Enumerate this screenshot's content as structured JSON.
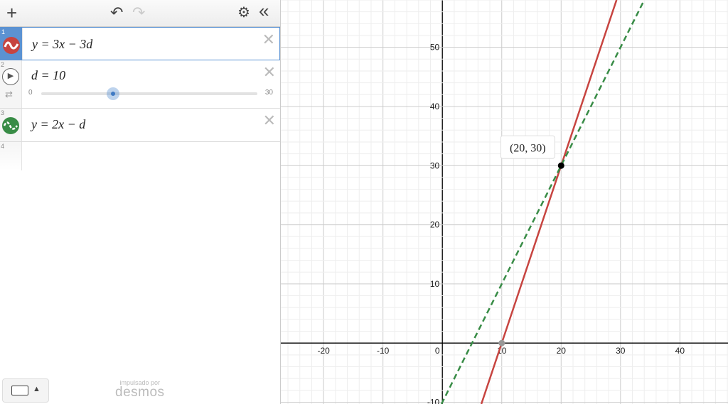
{
  "toolbar": {
    "add": "+",
    "undo": "↶",
    "redo": "↷",
    "settings": "⚙",
    "collapse": "«"
  },
  "expressions": [
    {
      "index": "1",
      "latex": "y = 3x − 3d",
      "color": "#c74440",
      "style": "solid",
      "selected": true
    },
    {
      "index": "2",
      "latex": "d = 10",
      "slider": {
        "min": "0",
        "max": "30",
        "value": 10
      }
    },
    {
      "index": "3",
      "latex": "y = 2x − d",
      "color": "#388c46",
      "style": "dashed"
    },
    {
      "index": "4",
      "latex": ""
    }
  ],
  "footer": {
    "powered_by": "impulsado por",
    "brand": "desmos"
  },
  "chart_data": {
    "type": "line",
    "xlim": [
      -27.2,
      48.1
    ],
    "ylim": [
      -10.3,
      58
    ],
    "grid": true,
    "x_ticks": [
      "-20",
      "-10",
      "0",
      "10",
      "20",
      "30",
      "40"
    ],
    "y_ticks": [
      "-10",
      "10",
      "20",
      "30",
      "40",
      "50"
    ],
    "series": [
      {
        "expr": "y=3x-30",
        "slope": 3,
        "intercept": -30,
        "color": "#c74440",
        "style": "solid"
      },
      {
        "expr": "y=2x-10",
        "slope": 2,
        "intercept": -10,
        "color": "#388c46",
        "style": "dashed"
      }
    ],
    "points": [
      {
        "x": 20,
        "y": 30,
        "label": "(20, 30)",
        "color": "#000"
      },
      {
        "x": 10,
        "y": 0,
        "label": "",
        "color": "#999"
      }
    ]
  }
}
